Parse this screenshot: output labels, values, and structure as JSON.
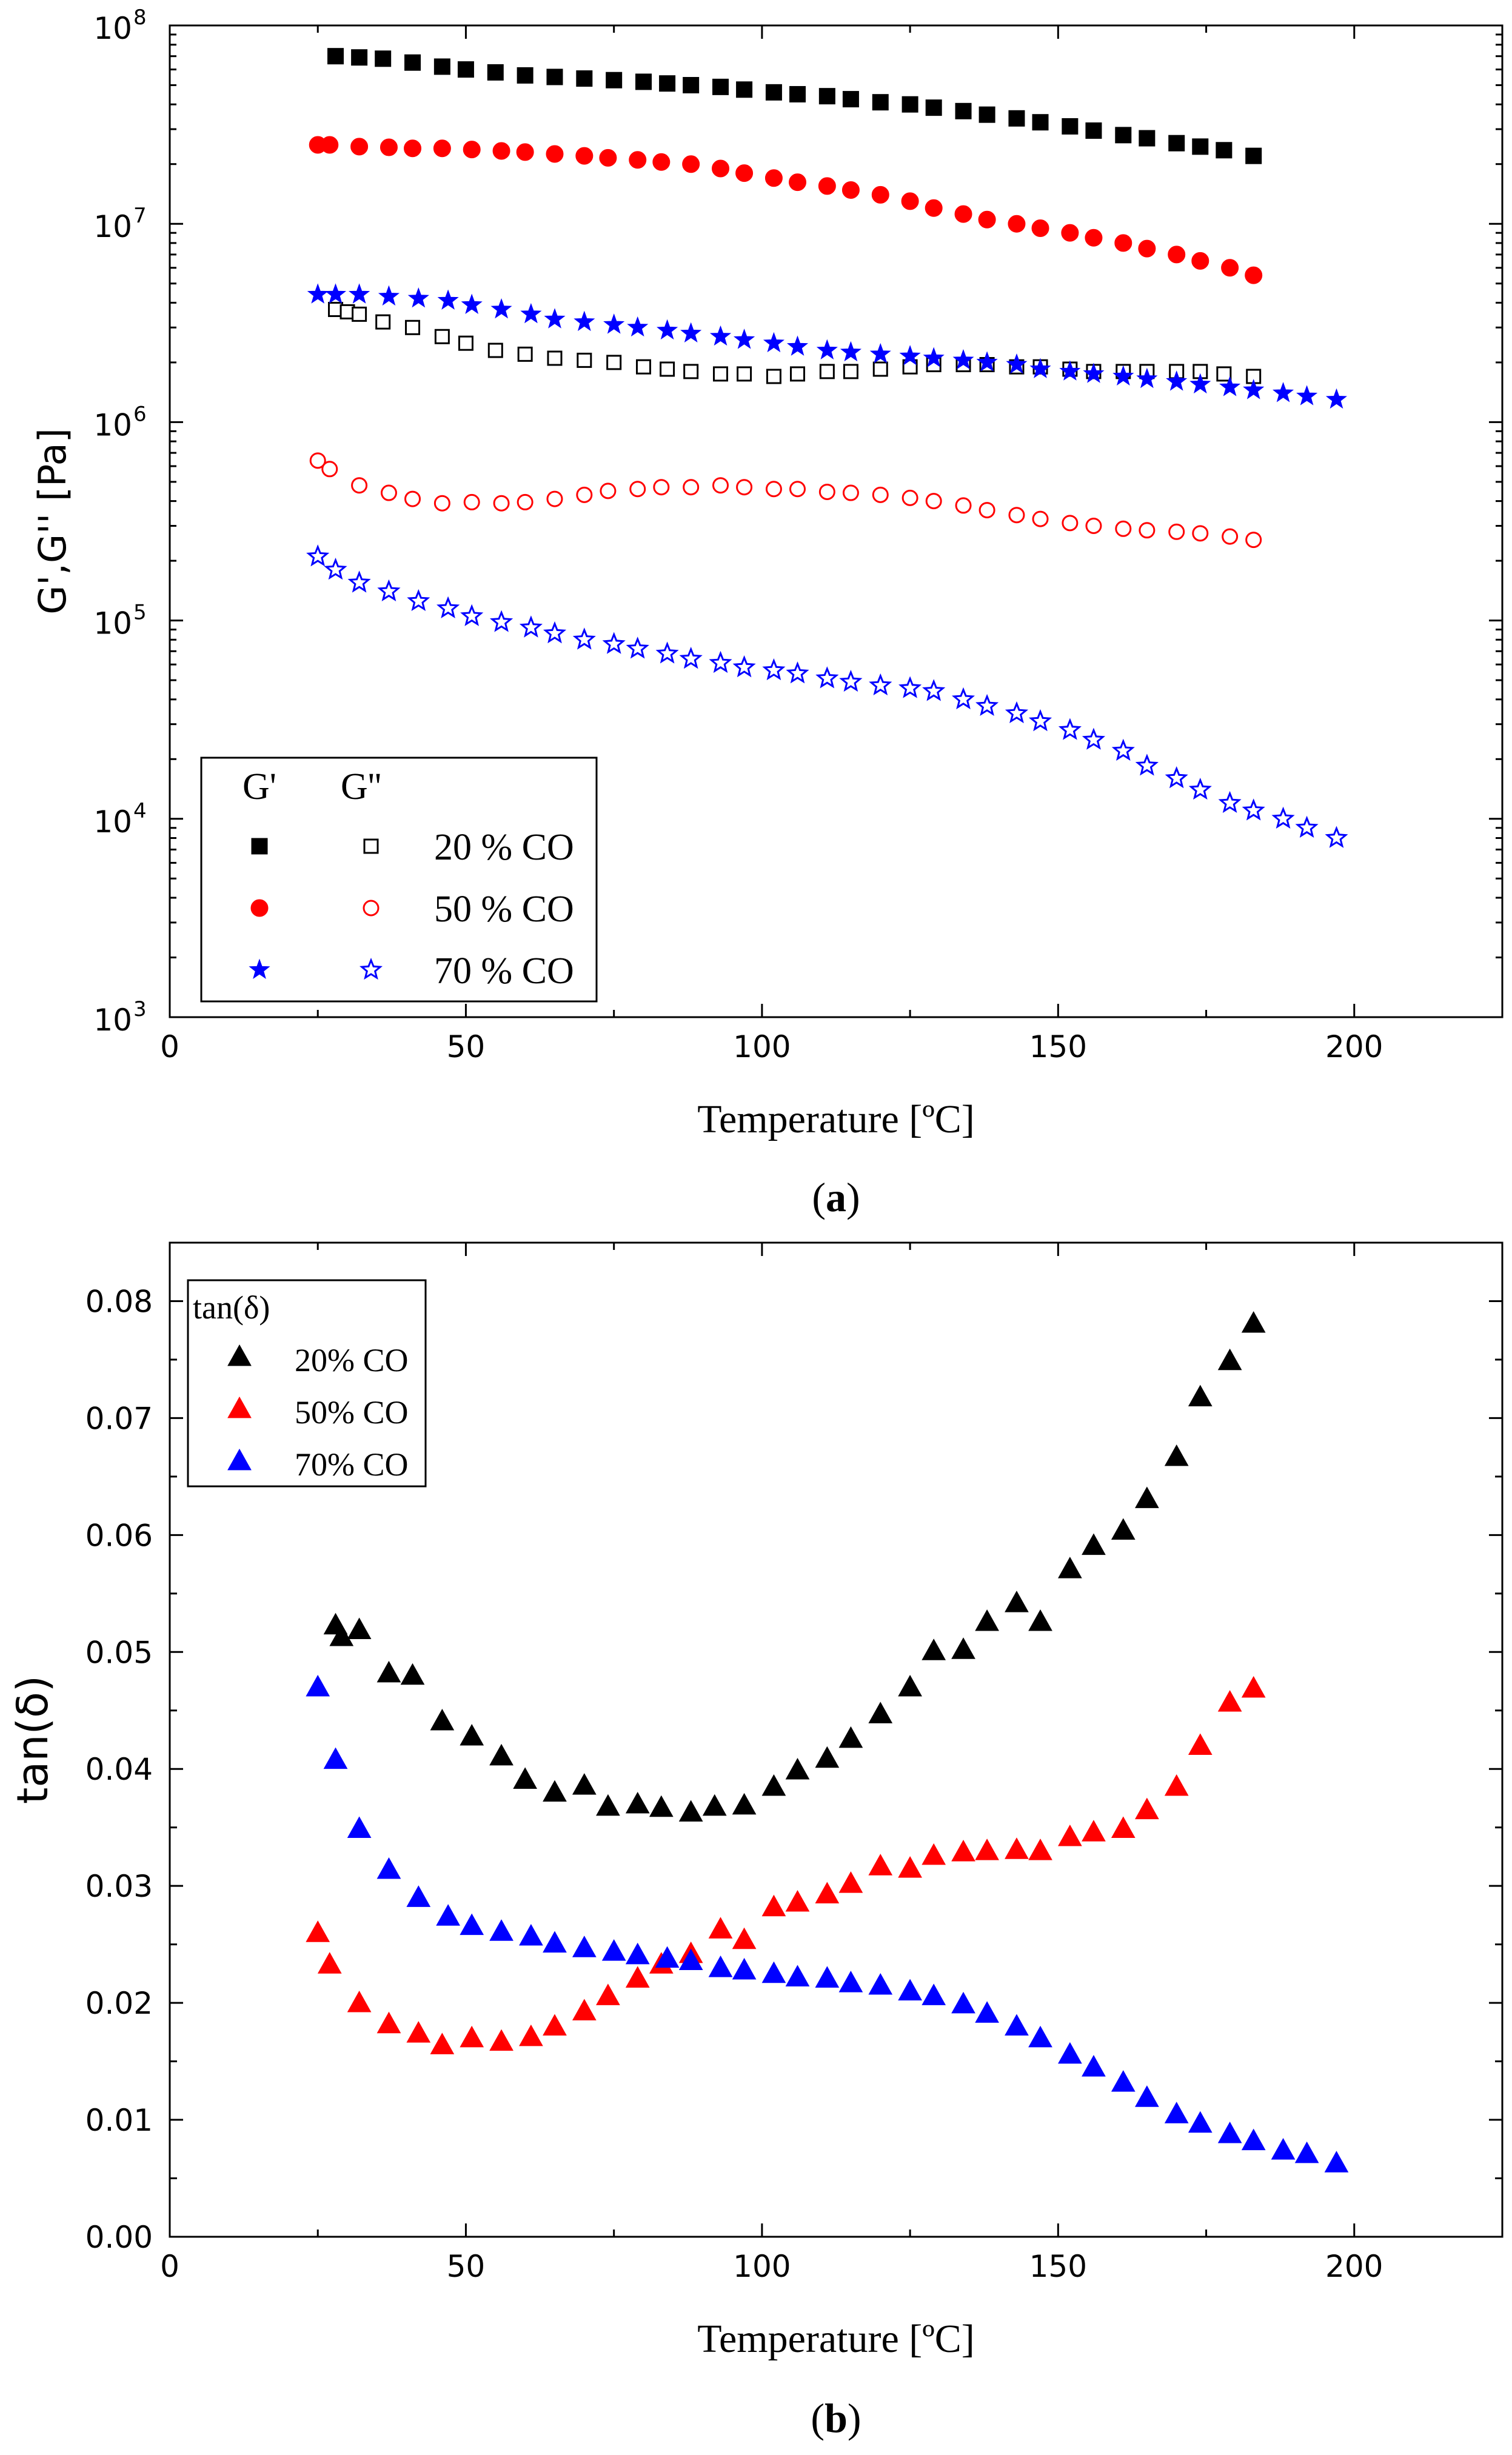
{
  "chart_data": [
    {
      "type": "scatter",
      "panel_label": "a",
      "xlabel": "Temperature [ºC]",
      "ylabel": "G',G'' [Pa]",
      "yscale": "log",
      "xlim": [
        0,
        225
      ],
      "ylim": [
        1000,
        100000000
      ],
      "xticks": [
        "0",
        "50",
        "100",
        "150",
        "200"
      ],
      "yticks": [
        {
          "value": 1000,
          "base": "10",
          "exp": "3"
        },
        {
          "value": 10000,
          "base": "10",
          "exp": "4"
        },
        {
          "value": 100000,
          "base": "10",
          "exp": "5"
        },
        {
          "value": 1000000,
          "base": "10",
          "exp": "6"
        },
        {
          "value": 10000000,
          "base": "10",
          "exp": "7"
        },
        {
          "value": 100000000,
          "base": "10",
          "exp": "8"
        }
      ],
      "legend": {
        "header_left": "G'",
        "header_right": "G''",
        "position": "lower-left"
      },
      "series": [
        {
          "name": "G' 20 % CO",
          "label": "20 % CO",
          "marker": "square",
          "filled": true,
          "color": "#000000",
          "x": [
            28,
            32,
            36,
            41,
            46,
            50,
            55,
            60,
            65,
            70,
            75,
            80,
            84,
            88,
            93,
            97,
            102,
            106,
            111,
            115,
            120,
            125,
            129,
            134,
            138,
            143,
            147,
            152,
            156,
            161,
            165,
            170,
            174,
            178,
            183
          ],
          "y": [
            70000000,
            69000000,
            68000000,
            65000000,
            62000000,
            60000000,
            58000000,
            56000000,
            55000000,
            54000000,
            53000000,
            52000000,
            51000000,
            50000000,
            49000000,
            47500000,
            46000000,
            45000000,
            44000000,
            42500000,
            41000000,
            40000000,
            38500000,
            37000000,
            35500000,
            34000000,
            32500000,
            31000000,
            29500000,
            28000000,
            27000000,
            25500000,
            24500000,
            23500000,
            22000000
          ]
        },
        {
          "name": "G'' 20 % CO",
          "label": "20 % CO",
          "marker": "square",
          "filled": false,
          "color": "#000000",
          "x": [
            28,
            30,
            32,
            36,
            41,
            46,
            50,
            55,
            60,
            65,
            70,
            75,
            80,
            84,
            88,
            93,
            97,
            102,
            106,
            111,
            115,
            120,
            125,
            129,
            134,
            138,
            143,
            147,
            152,
            156,
            161,
            165,
            170,
            174,
            178,
            183
          ],
          "y": [
            3700000,
            3600000,
            3500000,
            3200000,
            3000000,
            2700000,
            2500000,
            2300000,
            2200000,
            2100000,
            2050000,
            2000000,
            1900000,
            1850000,
            1800000,
            1750000,
            1750000,
            1700000,
            1750000,
            1800000,
            1800000,
            1850000,
            1900000,
            1950000,
            1950000,
            1950000,
            1900000,
            1900000,
            1850000,
            1800000,
            1800000,
            1800000,
            1800000,
            1800000,
            1750000,
            1700000
          ]
        },
        {
          "name": "G' 50 % CO",
          "label": "50 % CO",
          "marker": "circle",
          "filled": true,
          "color": "#ff0000",
          "x": [
            25,
            27,
            32,
            37,
            41,
            46,
            51,
            56,
            60,
            65,
            70,
            74,
            79,
            83,
            88,
            93,
            97,
            102,
            106,
            111,
            115,
            120,
            125,
            129,
            134,
            138,
            143,
            147,
            152,
            156,
            161,
            165,
            170,
            174,
            179,
            183
          ],
          "y": [
            25000000,
            25000000,
            24500000,
            24300000,
            24000000,
            24000000,
            23700000,
            23300000,
            23000000,
            22500000,
            22000000,
            21500000,
            21000000,
            20500000,
            20000000,
            19000000,
            18000000,
            17000000,
            16200000,
            15500000,
            14800000,
            14000000,
            13000000,
            12000000,
            11200000,
            10500000,
            10000000,
            9500000,
            9000000,
            8500000,
            8000000,
            7500000,
            7000000,
            6500000,
            6000000,
            5500000
          ]
        },
        {
          "name": "G'' 50 % CO",
          "label": "50 % CO",
          "marker": "circle",
          "filled": false,
          "color": "#ff0000",
          "x": [
            25,
            27,
            32,
            37,
            41,
            46,
            51,
            56,
            60,
            65,
            70,
            74,
            79,
            83,
            88,
            93,
            97,
            102,
            106,
            111,
            115,
            120,
            125,
            129,
            134,
            138,
            143,
            147,
            152,
            156,
            161,
            165,
            170,
            174,
            179,
            183
          ],
          "y": [
            640000,
            580000,
            480000,
            440000,
            410000,
            390000,
            395000,
            390000,
            395000,
            410000,
            430000,
            450000,
            460000,
            470000,
            470000,
            480000,
            470000,
            460000,
            460000,
            445000,
            440000,
            430000,
            415000,
            400000,
            380000,
            360000,
            340000,
            325000,
            310000,
            300000,
            290000,
            285000,
            280000,
            275000,
            265000,
            255000
          ]
        },
        {
          "name": "G' 70 % CO",
          "label": "70 % CO",
          "marker": "star",
          "filled": true,
          "color": "#0000ff",
          "x": [
            25,
            28,
            32,
            37,
            42,
            47,
            51,
            56,
            61,
            65,
            70,
            75,
            79,
            84,
            88,
            93,
            97,
            102,
            106,
            111,
            115,
            120,
            125,
            129,
            134,
            138,
            143,
            147,
            152,
            156,
            161,
            165,
            170,
            174,
            179,
            183,
            188,
            192,
            197
          ],
          "y": [
            4400000,
            4400000,
            4400000,
            4300000,
            4200000,
            4100000,
            3900000,
            3700000,
            3500000,
            3300000,
            3200000,
            3100000,
            3000000,
            2900000,
            2800000,
            2700000,
            2600000,
            2500000,
            2400000,
            2300000,
            2250000,
            2200000,
            2150000,
            2100000,
            2050000,
            2000000,
            1950000,
            1850000,
            1800000,
            1750000,
            1700000,
            1650000,
            1600000,
            1550000,
            1500000,
            1450000,
            1400000,
            1350000,
            1300000
          ]
        },
        {
          "name": "G'' 70 % CO",
          "label": "70 % CO",
          "marker": "star",
          "filled": false,
          "color": "#0000ff",
          "x": [
            25,
            28,
            32,
            37,
            42,
            47,
            51,
            56,
            61,
            65,
            70,
            75,
            79,
            84,
            88,
            93,
            97,
            102,
            106,
            111,
            115,
            120,
            125,
            129,
            134,
            138,
            143,
            147,
            152,
            156,
            161,
            165,
            170,
            174,
            179,
            183,
            188,
            192,
            197
          ],
          "y": [
            210000,
            180000,
            155000,
            140000,
            125000,
            115000,
            105000,
            98000,
            92000,
            86000,
            80000,
            76000,
            72000,
            68000,
            64000,
            61000,
            58000,
            56000,
            54000,
            51000,
            49000,
            47000,
            45500,
            44000,
            40000,
            37000,
            34000,
            31000,
            28000,
            25000,
            22000,
            18500,
            16000,
            14000,
            12000,
            11000,
            10000,
            9000,
            8000
          ]
        }
      ]
    },
    {
      "type": "scatter",
      "panel_label": "b",
      "xlabel": "Temperature [ºC]",
      "ylabel": "tan(δ)",
      "xlim": [
        0,
        225
      ],
      "ylim": [
        0,
        0.085
      ],
      "xticks": [
        "0",
        "50",
        "100",
        "150",
        "200"
      ],
      "yticks": [
        "0.00",
        "0.01",
        "0.02",
        "0.03",
        "0.04",
        "0.05",
        "0.06",
        "0.07",
        "0.08"
      ],
      "legend": {
        "title": "tan(δ)",
        "position": "upper-left"
      },
      "series": [
        {
          "name": "20% CO",
          "marker": "triangle",
          "filled": true,
          "color": "#000000",
          "x": [
            28,
            29,
            32,
            37,
            41,
            46,
            51,
            56,
            60,
            65,
            70,
            74,
            79,
            83,
            88,
            92,
            97,
            102,
            106,
            111,
            115,
            120,
            125,
            129,
            134,
            138,
            143,
            147,
            152,
            156,
            161,
            165,
            170,
            174,
            179,
            183
          ],
          "y": [
            0.0522,
            0.0512,
            0.0518,
            0.0481,
            0.0479,
            0.044,
            0.0427,
            0.041,
            0.039,
            0.0379,
            0.0385,
            0.0367,
            0.0369,
            0.0366,
            0.0362,
            0.0367,
            0.0368,
            0.0384,
            0.0398,
            0.0408,
            0.0425,
            0.0446,
            0.0469,
            0.05,
            0.0501,
            0.0525,
            0.0541,
            0.0525,
            0.057,
            0.059,
            0.0603,
            0.063,
            0.0666,
            0.0717,
            0.0748,
            0.078
          ]
        },
        {
          "name": "50% CO",
          "marker": "triangle",
          "filled": true,
          "color": "#ff0000",
          "x": [
            25,
            27,
            32,
            37,
            42,
            46,
            51,
            56,
            61,
            65,
            70,
            74,
            79,
            83,
            88,
            93,
            97,
            102,
            106,
            111,
            115,
            120,
            125,
            129,
            134,
            138,
            143,
            147,
            152,
            156,
            161,
            165,
            170,
            174,
            179,
            183
          ],
          "y": [
            0.0259,
            0.0232,
            0.0199,
            0.0181,
            0.0173,
            0.0163,
            0.0169,
            0.0166,
            0.017,
            0.0179,
            0.0192,
            0.0205,
            0.022,
            0.0232,
            0.0241,
            0.0262,
            0.0253,
            0.0281,
            0.0285,
            0.0292,
            0.0301,
            0.0316,
            0.0314,
            0.0325,
            0.0328,
            0.0329,
            0.033,
            0.0329,
            0.0341,
            0.0345,
            0.0348,
            0.0364,
            0.0384,
            0.0419,
            0.0456,
            0.0468
          ]
        },
        {
          "name": "70% CO",
          "marker": "triangle",
          "filled": true,
          "color": "#0000ff",
          "x": [
            25,
            28,
            32,
            37,
            42,
            47,
            51,
            56,
            61,
            65,
            70,
            75,
            79,
            84,
            88,
            93,
            97,
            102,
            106,
            111,
            115,
            120,
            125,
            129,
            134,
            138,
            143,
            147,
            152,
            156,
            161,
            165,
            170,
            174,
            179,
            183,
            188,
            192,
            197
          ],
          "y": [
            0.0469,
            0.0407,
            0.0348,
            0.0313,
            0.0289,
            0.0273,
            0.0265,
            0.026,
            0.0256,
            0.025,
            0.0246,
            0.0243,
            0.024,
            0.0237,
            0.0235,
            0.0229,
            0.0227,
            0.0224,
            0.0221,
            0.022,
            0.0216,
            0.0214,
            0.0209,
            0.0205,
            0.0198,
            0.019,
            0.0179,
            0.0169,
            0.0155,
            0.0144,
            0.0131,
            0.0118,
            0.0104,
            0.0096,
            0.0087,
            0.0081,
            0.0073,
            0.007,
            0.0062
          ]
        }
      ]
    }
  ]
}
